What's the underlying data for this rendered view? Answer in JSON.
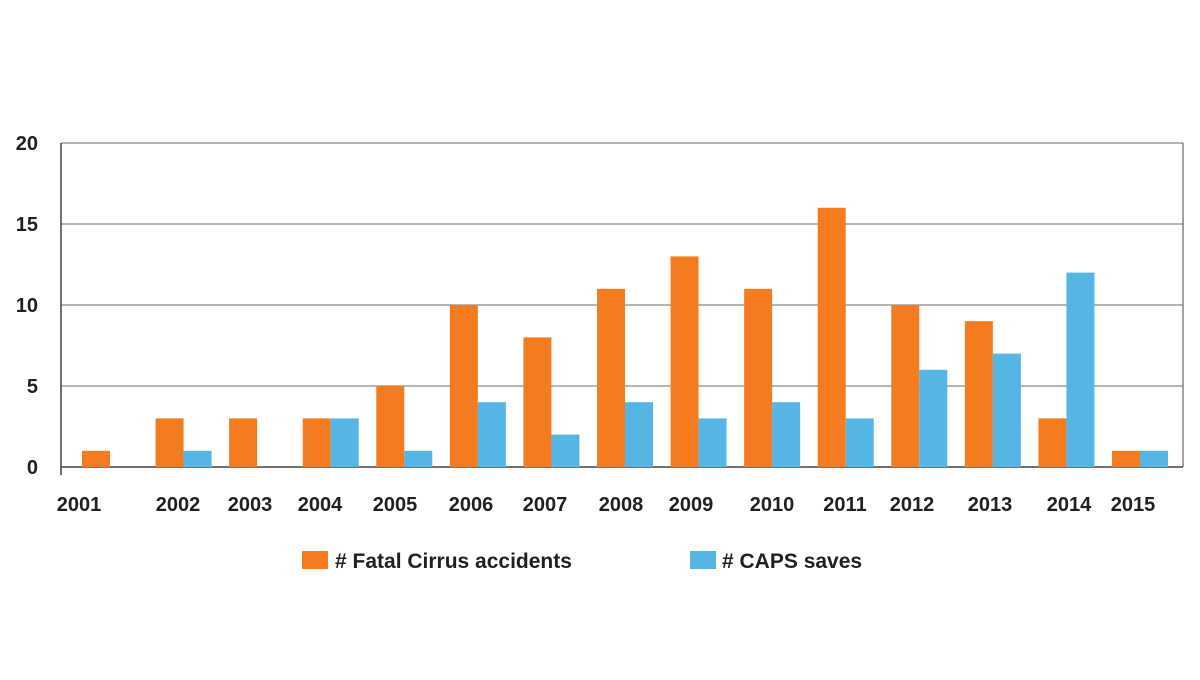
{
  "chart_data": {
    "type": "bar",
    "title": "",
    "xlabel": "",
    "ylabel": "",
    "categories": [
      "2001",
      "2002",
      "2003",
      "2004",
      "2005",
      "2006",
      "2007",
      "2008",
      "2009",
      "2010",
      "2011",
      "2012",
      "2013",
      "2014",
      "2015"
    ],
    "series": [
      {
        "name": "# Fatal Cirrus accidents",
        "color": "#f47b20",
        "values": [
          1,
          3,
          3,
          3,
          5,
          10,
          8,
          11,
          13,
          11,
          16,
          10,
          9,
          3,
          1
        ]
      },
      {
        "name": "# CAPS saves",
        "color": "#55b6e6",
        "values": [
          0,
          1,
          0,
          3,
          1,
          4,
          2,
          4,
          3,
          4,
          3,
          6,
          7,
          12,
          1
        ]
      }
    ],
    "ylim": [
      0,
      20
    ],
    "yticks": [
      "0",
      "5",
      "10",
      "15",
      "20"
    ],
    "grid": true,
    "legend": "bottom"
  }
}
